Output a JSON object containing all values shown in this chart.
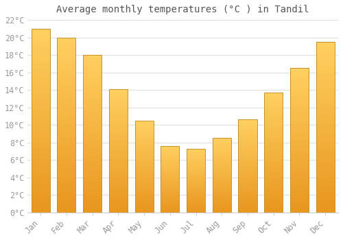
{
  "title": "Average monthly temperatures (°C ) in Tandil",
  "months": [
    "Jan",
    "Feb",
    "Mar",
    "Apr",
    "May",
    "Jun",
    "Jul",
    "Aug",
    "Sep",
    "Oct",
    "Nov",
    "Dec"
  ],
  "temperatures": [
    21.0,
    20.0,
    18.0,
    14.1,
    10.5,
    7.6,
    7.3,
    8.5,
    10.6,
    13.7,
    16.5,
    19.5
  ],
  "bar_color_main": "#F5A623",
  "bar_color_light": "#FFD060",
  "bar_edge_color": "#C8922A",
  "background_color": "#FFFFFF",
  "grid_color": "#E0E0E0",
  "tick_label_color": "#999999",
  "title_color": "#555555",
  "ylim": [
    0,
    22
  ],
  "ytick_step": 2,
  "title_fontsize": 10,
  "tick_fontsize": 8.5,
  "font_family": "monospace"
}
